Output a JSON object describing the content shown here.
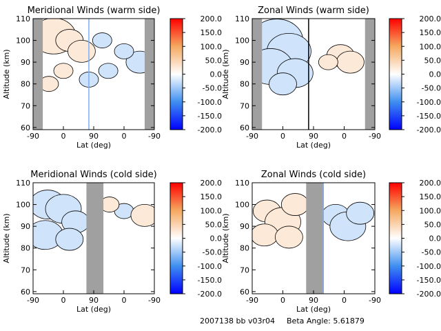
{
  "colorbar": {
    "ticks": [
      "200.0",
      "150.0",
      "100.0",
      "50.0",
      "0.0",
      "-50.0",
      "-100.0",
      "-150.0",
      "-200.0"
    ],
    "range": [
      -200,
      200
    ],
    "colors": {
      "low": "#0000ff",
      "mid": "#ffffff",
      "high": "#ff0000"
    }
  },
  "footer": {
    "id_text": "2007138 bb v03r04",
    "beta_text": "Beta Angle: 5.61879"
  },
  "chart_data": [
    {
      "type": "heatmap",
      "title": "Meridional Winds (warm side)",
      "xlabel": "Lat (deg)",
      "ylabel": "Altitude (km)",
      "xtick_labels": [
        "-90",
        "0",
        "90",
        "0",
        "-90"
      ],
      "yticks": [
        60,
        70,
        80,
        90,
        100,
        110
      ],
      "ylim": [
        59,
        110
      ],
      "grey_bands": [
        [
          0.0,
          0.08
        ],
        [
          0.92,
          1.0
        ]
      ],
      "blobs": [
        {
          "x": 0.17,
          "y": 102,
          "v": 90
        },
        {
          "x": 0.3,
          "y": 100,
          "v": 60
        },
        {
          "x": 0.4,
          "y": 95,
          "v": 45
        },
        {
          "x": 0.25,
          "y": 86,
          "v": 30
        },
        {
          "x": 0.13,
          "y": 80,
          "v": 25
        },
        {
          "x": 0.57,
          "y": 100,
          "v": -35
        },
        {
          "x": 0.62,
          "y": 86,
          "v": -30
        },
        {
          "x": 0.88,
          "y": 90,
          "v": -60
        },
        {
          "x": 0.75,
          "y": 95,
          "v": -25
        },
        {
          "x": 0.46,
          "y": 82,
          "v": -30
        }
      ],
      "markers": [
        {
          "x": 0.46,
          "color": "#7aaef5"
        }
      ]
    },
    {
      "type": "heatmap",
      "title": "Zonal Winds (warm side)",
      "xlabel": "Lat (deg)",
      "ylabel": "Altitude (km)",
      "xtick_labels": [
        "-90",
        "0",
        "90",
        "0",
        "-90"
      ],
      "yticks": [
        60,
        70,
        80,
        90,
        100,
        110
      ],
      "ylim": [
        59,
        110
      ],
      "grey_bands": [
        [
          0.0,
          0.08
        ],
        [
          0.92,
          1.0
        ]
      ],
      "blobs": [
        {
          "x": 0.2,
          "y": 100,
          "v": -120
        },
        {
          "x": 0.3,
          "y": 95,
          "v": -100
        },
        {
          "x": 0.15,
          "y": 88,
          "v": -90
        },
        {
          "x": 0.35,
          "y": 85,
          "v": -80
        },
        {
          "x": 0.25,
          "y": 80,
          "v": -60
        },
        {
          "x": 0.72,
          "y": 93,
          "v": 60
        },
        {
          "x": 0.8,
          "y": 90,
          "v": 45
        },
        {
          "x": 0.62,
          "y": 90,
          "v": 35
        }
      ],
      "markers": [
        {
          "x": 0.46,
          "color": "#000000"
        }
      ]
    },
    {
      "type": "heatmap",
      "title": "Meridional Winds (cold side)",
      "xlabel": "Lat (deg)",
      "ylabel": "Altitude (km)",
      "xtick_labels": [
        "-90",
        "0",
        "90",
        "0",
        "-90"
      ],
      "yticks": [
        60,
        70,
        80,
        90,
        100,
        110
      ],
      "ylim": [
        59,
        110
      ],
      "grey_bands": [
        [
          0.44,
          0.58
        ]
      ],
      "blobs": [
        {
          "x": 0.12,
          "y": 100,
          "v": -80
        },
        {
          "x": 0.25,
          "y": 98,
          "v": -70
        },
        {
          "x": 0.35,
          "y": 92,
          "v": -60
        },
        {
          "x": 0.1,
          "y": 86,
          "v": -70
        },
        {
          "x": 0.3,
          "y": 84,
          "v": -50
        },
        {
          "x": 0.75,
          "y": 97,
          "v": -20
        },
        {
          "x": 0.92,
          "y": 95,
          "v": 45
        },
        {
          "x": 0.63,
          "y": 100,
          "v": 25
        }
      ],
      "markers": []
    },
    {
      "type": "heatmap",
      "title": "Zonal Winds (cold side)",
      "xlabel": "Lat (deg)",
      "ylabel": "Altitude (km)",
      "xtick_labels": [
        "-90",
        "0",
        "90",
        "0",
        "-90"
      ],
      "yticks": [
        60,
        70,
        80,
        90,
        100,
        110
      ],
      "ylim": [
        59,
        110
      ],
      "grey_bands": [
        [
          0.44,
          0.58
        ]
      ],
      "blobs": [
        {
          "x": 0.12,
          "y": 97,
          "v": 60
        },
        {
          "x": 0.25,
          "y": 92,
          "v": 75
        },
        {
          "x": 0.35,
          "y": 100,
          "v": 50
        },
        {
          "x": 0.1,
          "y": 86,
          "v": 40
        },
        {
          "x": 0.3,
          "y": 85,
          "v": 55
        },
        {
          "x": 0.68,
          "y": 95,
          "v": -50
        },
        {
          "x": 0.78,
          "y": 90,
          "v": -70
        },
        {
          "x": 0.88,
          "y": 96,
          "v": -45
        }
      ],
      "markers": [
        {
          "x": 0.58,
          "color": "#7aaef5"
        }
      ]
    }
  ]
}
